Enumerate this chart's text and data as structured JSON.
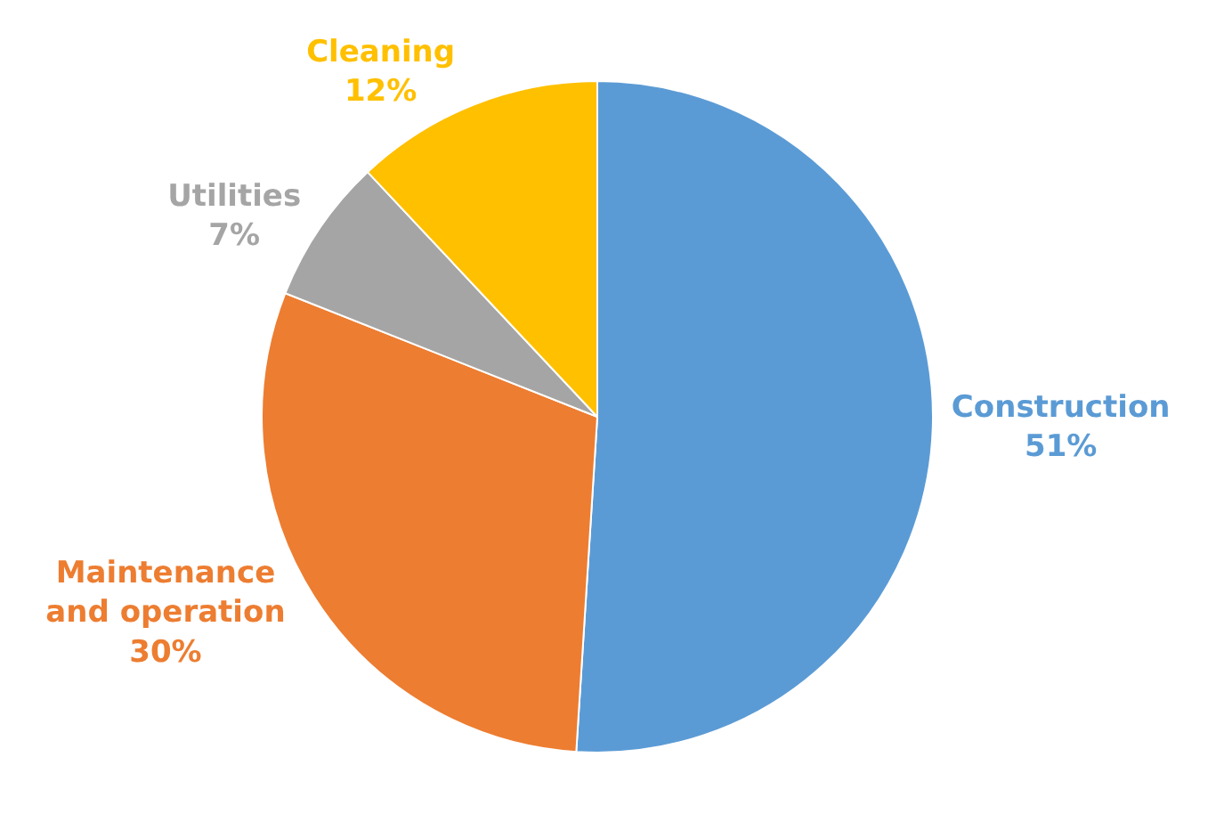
{
  "chart_data": {
    "type": "pie",
    "categories": [
      "Construction",
      "Maintenance and operation",
      "Utilities",
      "Cleaning"
    ],
    "values": [
      51,
      30,
      7,
      12
    ],
    "colors": [
      "#5b9bd5",
      "#ed7d31",
      "#a5a5a5",
      "#ffc000"
    ],
    "value_labels": [
      "51%",
      "30%",
      "7%",
      "12%"
    ],
    "legend": false
  }
}
